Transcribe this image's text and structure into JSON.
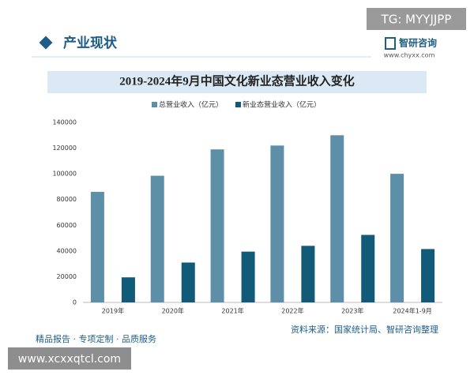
{
  "tag": "TG: MYYJJPP",
  "header": {
    "section_title": "产业现状",
    "brand_name": "智研咨询",
    "brand_url": "www.chyxx.com"
  },
  "chart_data": {
    "type": "bar",
    "title": "2019-2024年9月中国文化新业态营业收入变化",
    "categories": [
      "2019年",
      "2020年",
      "2021年",
      "2022年",
      "2023年",
      "2024年1-9月"
    ],
    "series": [
      {
        "name": "总营业收入（亿元）",
        "color": "#5e8fa9",
        "values": [
          86000,
          98500,
          119000,
          122000,
          130000,
          100000
        ]
      },
      {
        "name": "新业态营业收入（亿元）",
        "color": "#115a78",
        "values": [
          19500,
          31000,
          39500,
          44000,
          52500,
          41500
        ]
      }
    ],
    "ylim": [
      0,
      140000
    ],
    "yticks": [
      0,
      20000,
      40000,
      60000,
      80000,
      100000,
      120000,
      140000
    ],
    "grid": false
  },
  "footer": {
    "source": "资料来源：国家统计局、智研咨询整理",
    "slogan": "精品报告 · 专项定制 · 品质服务",
    "site": "www.xcxxqtcl.com"
  }
}
